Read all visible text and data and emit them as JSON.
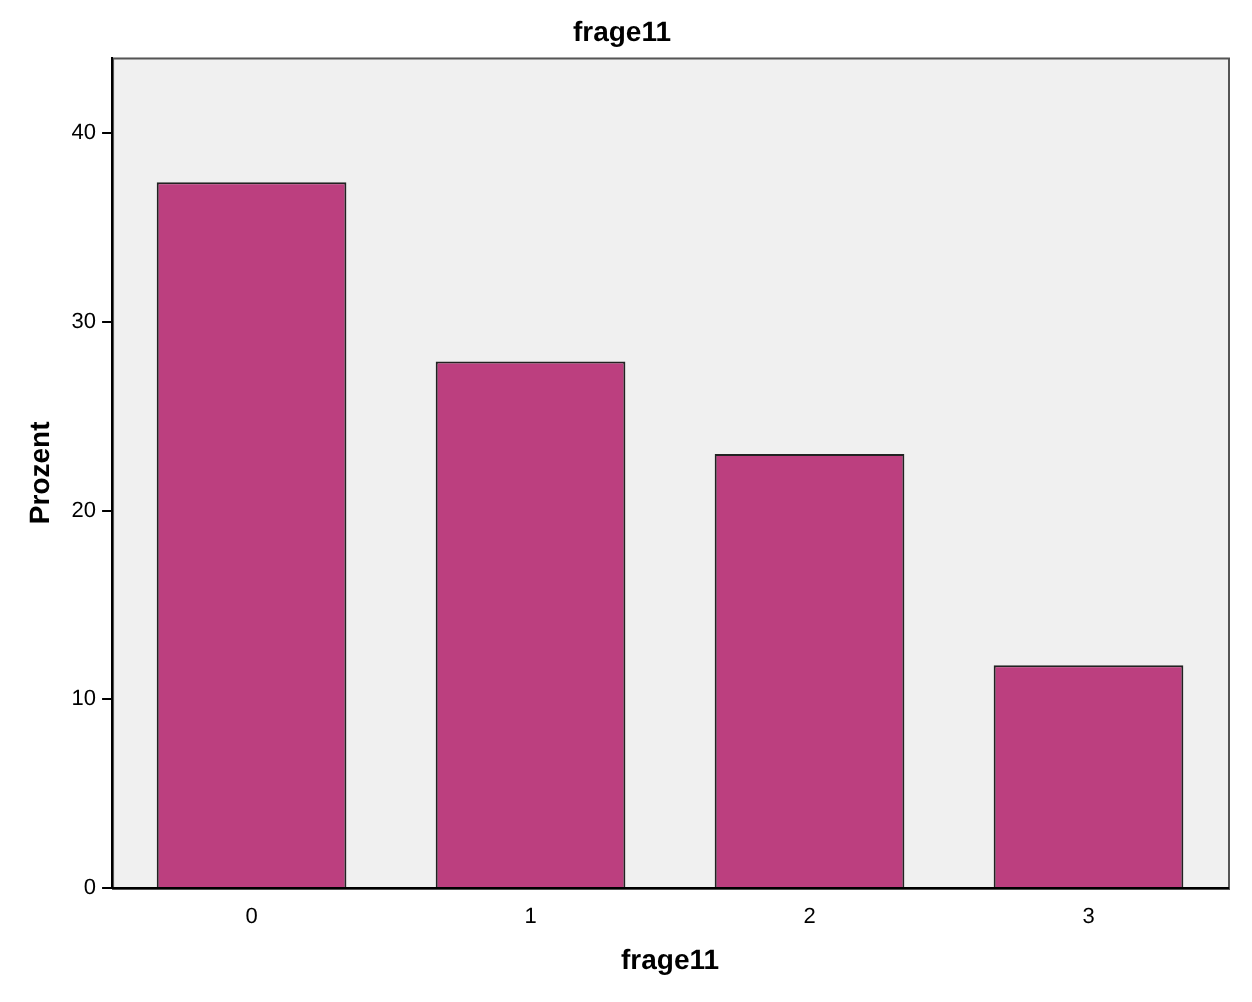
{
  "chart_data": {
    "type": "bar",
    "title": "frage11",
    "xlabel": "frage11",
    "ylabel": "Prozent",
    "categories": [
      "0",
      "1",
      "2",
      "3"
    ],
    "values": [
      37.4,
      27.9,
      23.0,
      11.8
    ],
    "color": "#bc3f7f",
    "ylim": [
      0,
      44
    ],
    "yticks": [
      0,
      10,
      20,
      30,
      40
    ],
    "grid": false,
    "legend": false
  }
}
